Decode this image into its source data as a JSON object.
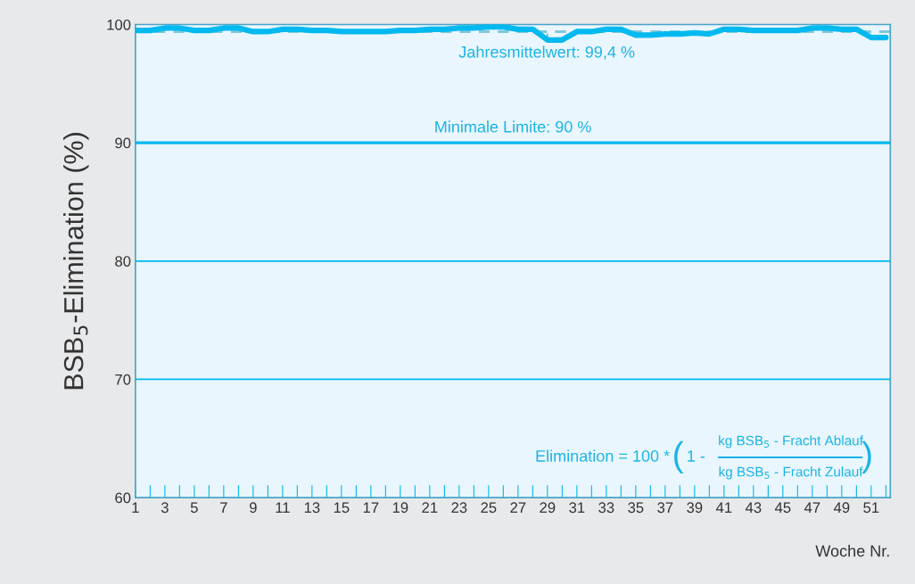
{
  "chart_data": {
    "type": "line",
    "ylabel": "BSB$_{5}$-Elimination (%)",
    "xlabel": "Woche Nr.",
    "x": [
      1,
      2,
      3,
      4,
      5,
      6,
      7,
      8,
      9,
      10,
      11,
      12,
      13,
      14,
      15,
      16,
      17,
      18,
      19,
      20,
      21,
      22,
      23,
      24,
      25,
      26,
      27,
      28,
      29,
      30,
      31,
      32,
      33,
      34,
      35,
      36,
      37,
      38,
      39,
      40,
      41,
      42,
      43,
      44,
      45,
      46,
      47,
      48,
      49,
      50,
      51,
      52
    ],
    "series": [
      {
        "color": "#00b9ef",
        "values": [
          99.5,
          99.5,
          99.7,
          99.7,
          99.5,
          99.5,
          99.7,
          99.7,
          99.4,
          99.4,
          99.6,
          99.6,
          99.5,
          99.5,
          99.4,
          99.4,
          99.4,
          99.4,
          99.5,
          99.5,
          99.6,
          99.6,
          99.7,
          99.7,
          99.8,
          99.8,
          99.6,
          99.6,
          98.7,
          98.7,
          99.4,
          99.4,
          99.6,
          99.6,
          99.1,
          99.1,
          99.2,
          99.2,
          99.3,
          99.2,
          99.6,
          99.6,
          99.5,
          99.5,
          99.5,
          99.5,
          99.7,
          99.7,
          99.6,
          99.6,
          98.9,
          98.9
        ]
      }
    ],
    "xlim": [
      1,
      52.3
    ],
    "ylim": [
      60,
      100
    ],
    "xticks": [
      1,
      {
        "value": 2,
        "label": null
      },
      3,
      {
        "value": 4,
        "label": null
      },
      5,
      {
        "value": 6,
        "label": null
      },
      7,
      {
        "value": 8,
        "label": null
      },
      9,
      {
        "value": 10,
        "label": null
      },
      11,
      {
        "value": 12,
        "label": null
      },
      13,
      {
        "value": 14,
        "label": null
      },
      15,
      {
        "value": 16,
        "label": null
      },
      17,
      {
        "value": 18,
        "label": null
      },
      19,
      {
        "value": 20,
        "label": null
      },
      21,
      {
        "value": 22,
        "label": null
      },
      23,
      {
        "value": 24,
        "label": null
      },
      25,
      {
        "value": 26,
        "label": null
      },
      27,
      {
        "value": 28,
        "label": null
      },
      29,
      {
        "value": 30,
        "label": null
      },
      31,
      {
        "value": 32,
        "label": null
      },
      33,
      {
        "value": 34,
        "label": null
      },
      35,
      {
        "value": 36,
        "label": null
      },
      37,
      {
        "value": 38,
        "label": null
      },
      39,
      {
        "value": 40,
        "label": null
      },
      41,
      {
        "value": 42,
        "label": null
      },
      43,
      {
        "value": 44,
        "label": null
      },
      45,
      {
        "value": 46,
        "label": null
      },
      47,
      {
        "value": 48,
        "label": null
      },
      49,
      {
        "value": 50,
        "label": null
      },
      51,
      {
        "value": 52,
        "label": null
      }
    ],
    "yticks": [
      60,
      70,
      80,
      90,
      100
    ],
    "grid": "y",
    "marker": "none",
    "line_style": "solid",
    "ref_lines": [
      {
        "axis": "y",
        "value": 99.4,
        "line_style": "dashed",
        "color": "#7fc8dc"
      },
      {
        "axis": "y",
        "value": 90,
        "label": "Minimale Limite: 90 %",
        "color": "#00b9ef"
      }
    ],
    "annotations": [
      {
        "text": "Jahresmittelwert: 99,4 %",
        "x": 29,
        "y": 99.4
      },
      "Elimination = 100 *",
      "(",
      "1 -",
      "kg BSB$_{5}$ - Fracht Ablauf",
      "kg BSB$_{5}$ - Fracht Zulauf",
      ")"
    ]
  }
}
